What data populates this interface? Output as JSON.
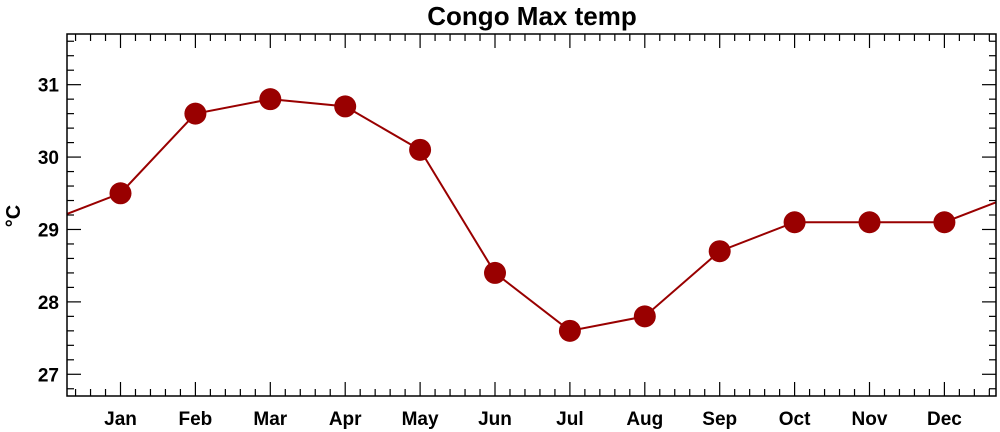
{
  "chart_data": {
    "type": "line",
    "title": "Congo Max temp",
    "xlabel": "",
    "ylabel": "°C",
    "categories": [
      "Jan",
      "Feb",
      "Mar",
      "Apr",
      "May",
      "Jun",
      "Jul",
      "Aug",
      "Sep",
      "Oct",
      "Nov",
      "Dec"
    ],
    "series": [
      {
        "values": [
          29.5,
          30.6,
          30.8,
          30.7,
          30.1,
          28.4,
          27.6,
          27.8,
          28.7,
          29.1,
          29.1,
          29.1
        ]
      }
    ],
    "yticks": [
      "27",
      "28",
      "29",
      "30",
      "31"
    ],
    "ylim": [
      26.7,
      31.7
    ],
    "wrap_around": true,
    "grid": false,
    "legend": "none",
    "line_color": "#990000",
    "marker_color": "#990000"
  }
}
